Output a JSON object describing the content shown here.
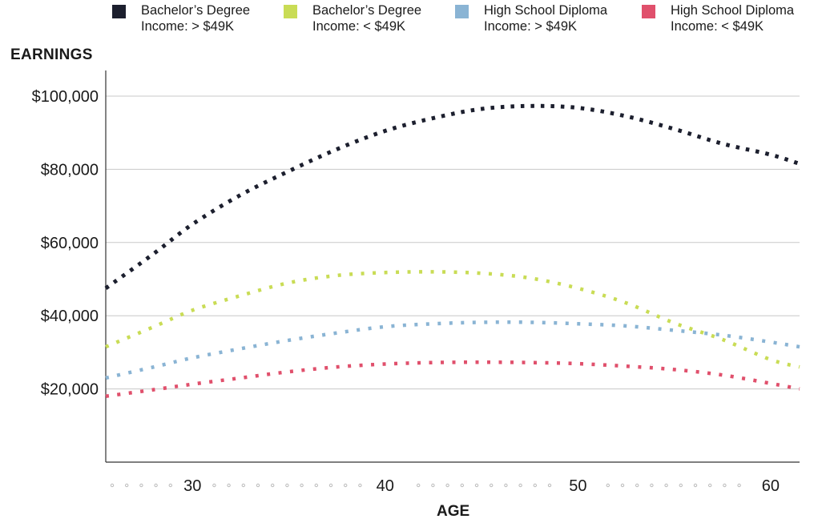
{
  "chart_data": {
    "type": "line",
    "title": "",
    "xlabel": "AGE",
    "ylabel": "EARNINGS",
    "xlim": [
      25.5,
      61.5
    ],
    "ylim": [
      0,
      107000
    ],
    "x_ticks": [
      "30",
      "40",
      "50",
      "60"
    ],
    "y_ticks": [
      "$20,000",
      "$40,000",
      "$60,000",
      "$80,000",
      "$100,000"
    ],
    "grid": true,
    "legend_position": "top",
    "series": [
      {
        "name": "Bachelor’s Degree",
        "sublabel": "Income: > $49K",
        "color": "#1c1f2e",
        "x": [
          25.5,
          28,
          30,
          32.5,
          35,
          37.5,
          40,
          42.5,
          45,
          47.5,
          50,
          52.5,
          55,
          57.5,
          60,
          61.5
        ],
        "values": [
          47500,
          57000,
          65000,
          73000,
          79500,
          85500,
          90500,
          94000,
          96500,
          97300,
          96800,
          94500,
          91000,
          87000,
          84000,
          81500
        ]
      },
      {
        "name": "Bachelor’s Degree",
        "sublabel": "Income: < $49K",
        "color": "#c9dc55",
        "x": [
          25.5,
          28,
          30,
          32.5,
          35,
          37.5,
          40,
          42.5,
          45,
          47.5,
          50,
          52.5,
          55,
          57.5,
          60,
          61.5
        ],
        "values": [
          31500,
          37000,
          41500,
          45500,
          49000,
          51000,
          51800,
          52000,
          51600,
          50300,
          47500,
          43500,
          38000,
          33500,
          28000,
          26000
        ]
      },
      {
        "name": "High School Diploma",
        "sublabel": "Income: > $49K",
        "color": "#8ab4d4",
        "x": [
          25.5,
          28,
          30,
          32.5,
          35,
          37.5,
          40,
          42.5,
          45,
          47.5,
          50,
          52.5,
          55,
          57.5,
          60,
          61.5
        ],
        "values": [
          23000,
          26000,
          28500,
          31000,
          33300,
          35300,
          37000,
          37800,
          38200,
          38200,
          37800,
          37200,
          36000,
          34700,
          32800,
          31500
        ]
      },
      {
        "name": "High School Diploma",
        "sublabel": "Income: < $49K",
        "color": "#e0506c",
        "x": [
          25.5,
          28,
          30,
          32.5,
          35,
          37.5,
          40,
          42.5,
          45,
          47.5,
          50,
          52.5,
          55,
          57.5,
          60,
          61.5
        ],
        "values": [
          18000,
          19800,
          21300,
          23000,
          24700,
          26000,
          26800,
          27200,
          27300,
          27200,
          26900,
          26200,
          25300,
          23800,
          21500,
          20000
        ]
      }
    ]
  }
}
